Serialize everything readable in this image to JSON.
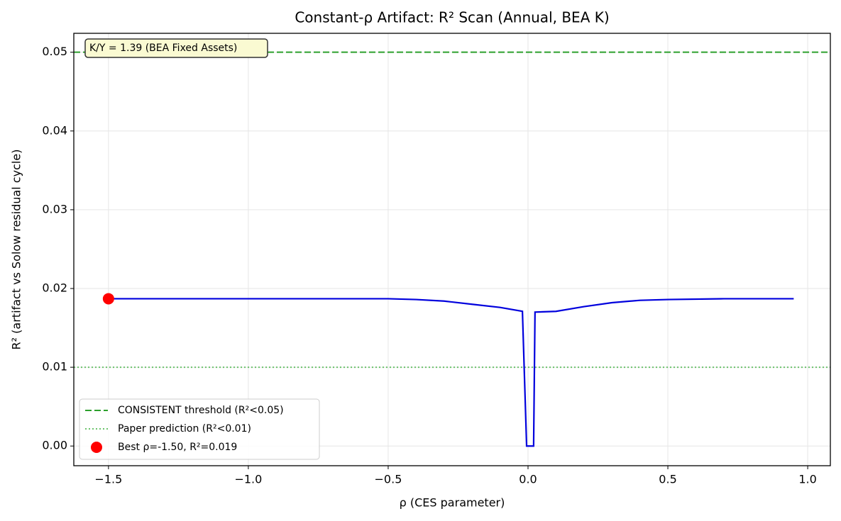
{
  "chart_data": {
    "type": "line",
    "title": "Constant-ρ Artifact: R² Scan (Annual, BEA K)",
    "x_label": "ρ (CES parameter)",
    "y_label": "R² (artifact vs Solow residual cycle)",
    "annotation": "K/Y = 1.39 (BEA Fixed Assets)",
    "xlim": [
      -1.624,
      1.081
    ],
    "ylim": [
      -0.0025,
      0.0524
    ],
    "xticks": [
      {
        "value": -1.5,
        "label": "−1.5"
      },
      {
        "value": -1.0,
        "label": "−1.0"
      },
      {
        "value": -0.5,
        "label": "−0.5"
      },
      {
        "value": 0.0,
        "label": "0.0"
      },
      {
        "value": 0.5,
        "label": "0.5"
      },
      {
        "value": 1.0,
        "label": "1.0"
      }
    ],
    "yticks": [
      {
        "value": 0,
        "label": "0.00"
      },
      {
        "value": 0.01,
        "label": "0.01"
      },
      {
        "value": 0.02,
        "label": "0.02"
      },
      {
        "value": 0.03,
        "label": "0.03"
      },
      {
        "value": 0.04,
        "label": "0.04"
      },
      {
        "value": 0.05,
        "label": "0.05"
      }
    ],
    "grid": true,
    "legend": "lower left",
    "curve": {
      "color": "#0000dd",
      "x": [
        -1.5,
        -1.0,
        -0.5,
        -0.4,
        -0.3,
        -0.2,
        -0.1,
        -0.02,
        -0.005,
        0.02,
        0.025,
        0.1,
        0.2,
        0.3,
        0.4,
        0.5,
        0.7,
        0.95
      ],
      "values": [
        0.0187,
        0.0187,
        0.0187,
        0.0186,
        0.0184,
        0.018,
        0.0176,
        0.0171,
        0,
        0,
        0.017,
        0.0171,
        0.0177,
        0.0182,
        0.0185,
        0.0186,
        0.0187,
        0.0187
      ]
    },
    "series": [
      {
        "name": "CONSISTENT threshold (R²<0.05)",
        "kind": "hline",
        "color": "#2ca02c",
        "dash": "dashed",
        "value": 0.05
      },
      {
        "name": "Paper prediction (R²<0.01)",
        "kind": "hline",
        "color": "#6cc36c",
        "dash": "dotted",
        "value": 0.01
      },
      {
        "name": "Best ρ=-1.50, R²=0.019",
        "kind": "point",
        "color": "#ff0000",
        "x": -1.5,
        "value": 0.0187
      }
    ]
  }
}
